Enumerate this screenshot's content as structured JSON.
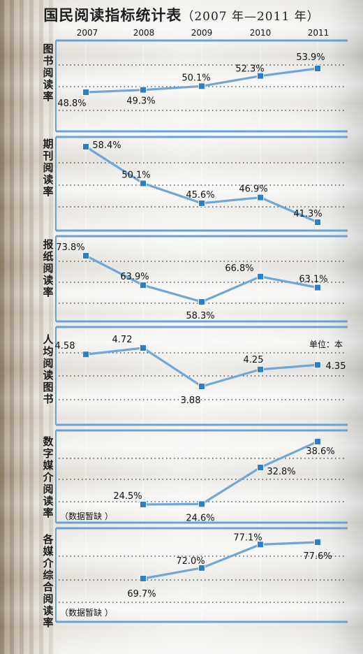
{
  "title": {
    "main": "国民阅读指标统计表",
    "sub": "（2007 年—2011 年）"
  },
  "colors": {
    "line": "#6fa7d9",
    "marker": "#2a7fc9",
    "dotted": "#333333",
    "panel_border": "#6ba2d4"
  },
  "chart_data": [
    {
      "type": "line",
      "ylabel": "图书阅读率",
      "x": [
        "2007",
        "2008",
        "2009",
        "2010",
        "2011"
      ],
      "values": [
        48.8,
        49.3,
        50.1,
        52.3,
        53.9
      ],
      "labels": [
        "48.8%",
        "49.3%",
        "50.1%",
        "52.3%",
        "53.9%"
      ]
    },
    {
      "type": "line",
      "ylabel": "期刊阅读率",
      "x": [
        "2007",
        "2008",
        "2009",
        "2010",
        "2011"
      ],
      "values": [
        58.4,
        50.1,
        45.6,
        46.9,
        41.3
      ],
      "labels": [
        "58.4%",
        "50.1%",
        "45.6%",
        "46.9%",
        "41.3%"
      ]
    },
    {
      "type": "line",
      "ylabel": "报纸阅读率",
      "x": [
        "2007",
        "2008",
        "2009",
        "2010",
        "2011"
      ],
      "values": [
        73.8,
        63.9,
        58.3,
        66.8,
        63.1
      ],
      "labels": [
        "73.8%",
        "63.9%",
        "58.3%",
        "66.8%",
        "63.1%"
      ]
    },
    {
      "type": "line",
      "ylabel": "人均阅读图书",
      "unit": "单位：本",
      "x": [
        "2007",
        "2008",
        "2009",
        "2010",
        "2011"
      ],
      "values": [
        4.58,
        4.72,
        3.88,
        4.25,
        4.35
      ],
      "labels": [
        "4.58",
        "4.72",
        "3.88",
        "4.25",
        "4.35"
      ]
    },
    {
      "type": "line",
      "ylabel": "数字媒介阅读率",
      "note": "（数据暂缺 ）",
      "x": [
        "2008",
        "2009",
        "2010",
        "2011"
      ],
      "values": [
        24.5,
        24.6,
        32.8,
        38.6
      ],
      "labels": [
        "24.5%",
        "24.6%",
        "32.8%",
        "38.6%"
      ]
    },
    {
      "type": "line",
      "ylabel": "各媒介综合阅读率",
      "note": "（数据暂缺 ）",
      "x": [
        "2008",
        "2009",
        "2010",
        "2011"
      ],
      "values": [
        69.7,
        72.0,
        77.1,
        77.6
      ],
      "labels": [
        "69.7%",
        "72.0%",
        "77.1%",
        "77.6%"
      ]
    }
  ]
}
